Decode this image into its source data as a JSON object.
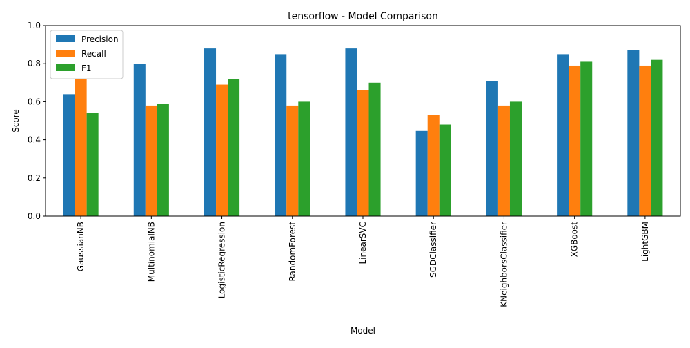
{
  "chart_data": {
    "type": "bar",
    "title": "tensorflow - Model Comparison",
    "xlabel": "Model",
    "ylabel": "Score",
    "ylim": [
      0,
      1.0
    ],
    "yticks": [
      "0.0",
      "0.2",
      "0.4",
      "0.6",
      "0.8",
      "1.0"
    ],
    "grid": false,
    "legend_position": "top-left",
    "categories": [
      "GaussianNB",
      "MultinomialNB",
      "LogisticRegression",
      "RandomForest",
      "LinearSVC",
      "SGDClassifier",
      "KNeighborsClassifier",
      "XGBoost",
      "LightGBM"
    ],
    "series": [
      {
        "name": "Precision",
        "color": "#1f77b4",
        "values": [
          0.64,
          0.8,
          0.88,
          0.85,
          0.88,
          0.45,
          0.71,
          0.85,
          0.87
        ]
      },
      {
        "name": "Recall",
        "color": "#ff7f0e",
        "values": [
          0.72,
          0.58,
          0.69,
          0.58,
          0.66,
          0.53,
          0.58,
          0.79,
          0.79
        ]
      },
      {
        "name": "F1",
        "color": "#2ca02c",
        "values": [
          0.54,
          0.59,
          0.72,
          0.6,
          0.7,
          0.48,
          0.6,
          0.81,
          0.82
        ]
      }
    ]
  }
}
